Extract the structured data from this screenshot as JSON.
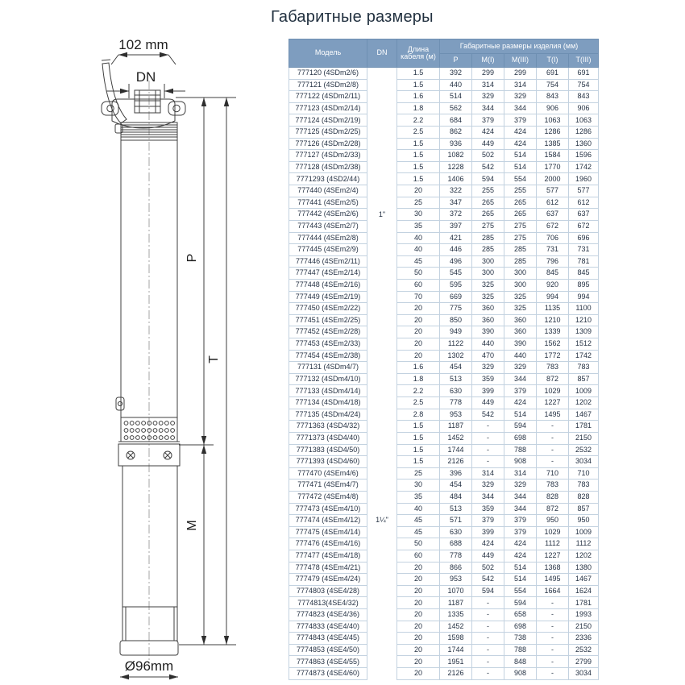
{
  "title": "Габаритные размеры",
  "drawing": {
    "dim_width_top": "102 mm",
    "dim_dn": "DN",
    "dim_p": "P",
    "dim_t": "T",
    "dim_m": "M",
    "dim_diameter_bottom": "Ø96mm"
  },
  "table": {
    "header": {
      "model": "Модель",
      "dn": "DN",
      "cable": "Длина кабеля (м)",
      "group": "Габаритные размеры изделия (мм)",
      "sub": [
        "P",
        "M(I)",
        "M(III)",
        "T(I)",
        "T(III)"
      ]
    },
    "dn_groups": [
      {
        "value": "1\"",
        "rows": 25
      },
      {
        "value": "1¼\"",
        "rows": 27
      }
    ],
    "rows": [
      [
        "777120 (4SDm2/6)",
        "1.5",
        "392",
        "299",
        "299",
        "691",
        "691"
      ],
      [
        "777121 (4SDm2/8)",
        "1.5",
        "440",
        "314",
        "314",
        "754",
        "754"
      ],
      [
        "777122 (4SDm2/11)",
        "1.6",
        "514",
        "329",
        "329",
        "843",
        "843"
      ],
      [
        "777123 (4SDm2/14)",
        "1.8",
        "562",
        "344",
        "344",
        "906",
        "906"
      ],
      [
        "777124 (4SDm2/19)",
        "2.2",
        "684",
        "379",
        "379",
        "1063",
        "1063"
      ],
      [
        "777125 (4SDm2/25)",
        "2.5",
        "862",
        "424",
        "424",
        "1286",
        "1286"
      ],
      [
        "777126 (4SDm2/28)",
        "1.5",
        "936",
        "449",
        "424",
        "1385",
        "1360"
      ],
      [
        "777127 (4SDm2/33)",
        "1.5",
        "1082",
        "502",
        "514",
        "1584",
        "1596"
      ],
      [
        "777128 (4SDm2/38)",
        "1.5",
        "1228",
        "542",
        "514",
        "1770",
        "1742"
      ],
      [
        "7771293 (4SD2/44)",
        "1.5",
        "1406",
        "594",
        "554",
        "2000",
        "1960"
      ],
      [
        "777440 (4SEm2/4)",
        "20",
        "322",
        "255",
        "255",
        "577",
        "577"
      ],
      [
        "777441 (4SEm2/5)",
        "25",
        "347",
        "265",
        "265",
        "612",
        "612"
      ],
      [
        "777442 (4SEm2/6)",
        "30",
        "372",
        "265",
        "265",
        "637",
        "637"
      ],
      [
        "777443 (4SEm2/7)",
        "35",
        "397",
        "275",
        "275",
        "672",
        "672"
      ],
      [
        "777444 (4SEm2/8)",
        "40",
        "421",
        "285",
        "275",
        "706",
        "696"
      ],
      [
        "777445 (4SEm2/9)",
        "40",
        "446",
        "285",
        "285",
        "731",
        "731"
      ],
      [
        "777446 (4SEm2/11)",
        "45",
        "496",
        "300",
        "285",
        "796",
        "781"
      ],
      [
        "777447 (4SEm2/14)",
        "50",
        "545",
        "300",
        "300",
        "845",
        "845"
      ],
      [
        "777448 (4SEm2/16)",
        "60",
        "595",
        "325",
        "300",
        "920",
        "895"
      ],
      [
        "777449 (4SEm2/19)",
        "70",
        "669",
        "325",
        "325",
        "994",
        "994"
      ],
      [
        "777450 (4SEm2/22)",
        "20",
        "775",
        "360",
        "325",
        "1135",
        "1100"
      ],
      [
        "777451 (4SEm2/25)",
        "20",
        "850",
        "360",
        "360",
        "1210",
        "1210"
      ],
      [
        "777452 (4SEm2/28)",
        "20",
        "949",
        "390",
        "360",
        "1339",
        "1309"
      ],
      [
        "777453 (4SEm2/33)",
        "20",
        "1122",
        "440",
        "390",
        "1562",
        "1512"
      ],
      [
        "777454 (4SEm2/38)",
        "20",
        "1302",
        "470",
        "440",
        "1772",
        "1742"
      ],
      [
        "777131 (4SDm4/7)",
        "1.6",
        "454",
        "329",
        "329",
        "783",
        "783"
      ],
      [
        "777132 (4SDm4/10)",
        "1.8",
        "513",
        "359",
        "344",
        "872",
        "857"
      ],
      [
        "777133 (4SDm4/14)",
        "2.2",
        "630",
        "399",
        "379",
        "1029",
        "1009"
      ],
      [
        "777134 (4SDm4/18)",
        "2.5",
        "778",
        "449",
        "424",
        "1227",
        "1202"
      ],
      [
        "777135 (4SDm4/24)",
        "2.8",
        "953",
        "542",
        "514",
        "1495",
        "1467"
      ],
      [
        "7771363 (4SD4/32)",
        "1.5",
        "1187",
        "-",
        "594",
        "-",
        "1781"
      ],
      [
        "7771373 (4SD4/40)",
        "1.5",
        "1452",
        "-",
        "698",
        "-",
        "2150"
      ],
      [
        "7771383 (4SD4/50)",
        "1.5",
        "1744",
        "-",
        "788",
        "-",
        "2532"
      ],
      [
        "7771393 (4SD4/60)",
        "1.5",
        "2126",
        "-",
        "908",
        "-",
        "3034"
      ],
      [
        "777470 (4SEm4/6)",
        "25",
        "396",
        "314",
        "314",
        "710",
        "710"
      ],
      [
        "777471 (4SEm4/7)",
        "30",
        "454",
        "329",
        "329",
        "783",
        "783"
      ],
      [
        "777472 (4SEm4/8)",
        "35",
        "484",
        "344",
        "344",
        "828",
        "828"
      ],
      [
        "777473 (4SEm4/10)",
        "40",
        "513",
        "359",
        "344",
        "872",
        "857"
      ],
      [
        "777474 (4SEm4/12)",
        "45",
        "571",
        "379",
        "379",
        "950",
        "950"
      ],
      [
        "777475 (4SEm4/14)",
        "45",
        "630",
        "399",
        "379",
        "1029",
        "1009"
      ],
      [
        "777476 (4SEm4/16)",
        "50",
        "688",
        "424",
        "424",
        "1112",
        "1112"
      ],
      [
        "777477 (4SEm4/18)",
        "60",
        "778",
        "449",
        "424",
        "1227",
        "1202"
      ],
      [
        "777478 (4SEm4/21)",
        "20",
        "866",
        "502",
        "514",
        "1368",
        "1380"
      ],
      [
        "777479 (4SEm4/24)",
        "20",
        "953",
        "542",
        "514",
        "1495",
        "1467"
      ],
      [
        "7774803 (4SE4/28)",
        "20",
        "1070",
        "594",
        "554",
        "1664",
        "1624"
      ],
      [
        "7774813(4SE4/32)",
        "20",
        "1187",
        "-",
        "594",
        "-",
        "1781"
      ],
      [
        "7774823 (4SE4/36)",
        "20",
        "1335",
        "-",
        "658",
        "-",
        "1993"
      ],
      [
        "7774833 (4SE4/40)",
        "20",
        "1452",
        "-",
        "698",
        "-",
        "2150"
      ],
      [
        "7774843 (4SE4/45)",
        "20",
        "1598",
        "-",
        "738",
        "-",
        "2336"
      ],
      [
        "7774853 (4SE4/50)",
        "20",
        "1744",
        "-",
        "788",
        "-",
        "2532"
      ],
      [
        "7774863 (4SE4/55)",
        "20",
        "1951",
        "-",
        "848",
        "-",
        "2799"
      ],
      [
        "7774873 (4SE4/60)",
        "20",
        "2126",
        "-",
        "908",
        "-",
        "3034"
      ]
    ]
  },
  "colors": {
    "header_bg": "#7e9dbf",
    "header_text": "#ffffff",
    "cell_text": "#253244",
    "grid": "#c3d2e0",
    "line": "#3f3f3f"
  }
}
